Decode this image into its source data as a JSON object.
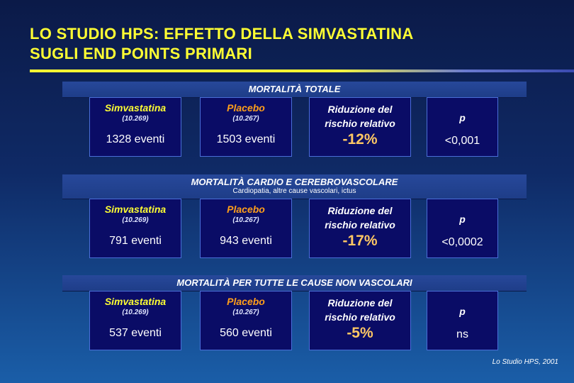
{
  "title_line1": "LO STUDIO HPS: EFFETTO DELLA SIMVASTATINA",
  "title_line2": "SUGLI END POINTS PRIMARI",
  "sections": [
    {
      "heading": "MORTALITÀ TOTALE",
      "subheading": "",
      "simva_label": "Simvastatina",
      "simva_n": "(10.269)",
      "simva_events": "1328 eventi",
      "placebo_label": "Placebo",
      "placebo_n": "(10.267)",
      "placebo_events": "1503 eventi",
      "rrr_label_1": "Riduzione del",
      "rrr_label_2": "rischio relativo",
      "rrr_value": "-12%",
      "p_label": "p",
      "p_value": "<0,001"
    },
    {
      "heading": "MORTALITÀ CARDIO E CEREBROVASCOLARE",
      "subheading": "Cardiopatia, altre cause vascolari, ictus",
      "simva_label": "Simvastatina",
      "simva_n": "(10.269)",
      "simva_events": "791 eventi",
      "placebo_label": "Placebo",
      "placebo_n": "(10.267)",
      "placebo_events": "943 eventi",
      "rrr_label_1": "Riduzione del",
      "rrr_label_2": "rischio relativo",
      "rrr_value": "-17%",
      "p_label": "p",
      "p_value": "<0,0002"
    },
    {
      "heading": "MORTALITÀ PER TUTTE LE CAUSE NON VASCOLARI",
      "subheading": "",
      "simva_label": "Simvastatina",
      "simva_n": "(10.269)",
      "simva_events": "537 eventi",
      "placebo_label": "Placebo",
      "placebo_n": "(10.267)",
      "placebo_events": "560 eventi",
      "rrr_label_1": "Riduzione del",
      "rrr_label_2": "rischio relativo",
      "rrr_value": "-5%",
      "p_label": "p",
      "p_value": "ns"
    }
  ],
  "footer": "Lo Studio HPS, 2001",
  "colors": {
    "title": "#ffff33",
    "simvastatina": "#ffff33",
    "placebo": "#ff9f1a",
    "rrr_value": "#ffc864",
    "box_fill": "#0a0c66"
  }
}
